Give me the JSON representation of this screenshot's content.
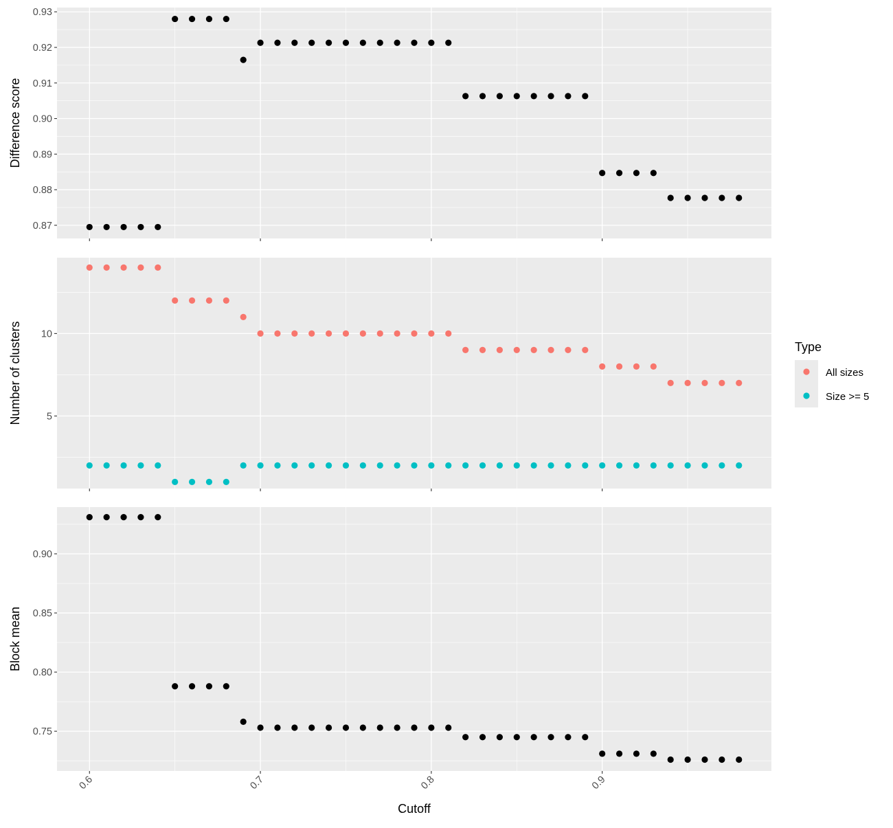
{
  "chart_data": [
    {
      "type": "scatter",
      "title": "",
      "xlabel": "",
      "ylabel": "Difference score",
      "xlim": [
        0.581,
        0.999
      ],
      "ylim": [
        0.8663,
        0.9312
      ],
      "yticks": [
        0.87,
        0.88,
        0.89,
        0.9,
        0.91,
        0.92,
        0.93
      ],
      "ytick_labels": [
        "0.87",
        "0.88",
        "0.89",
        "0.90",
        "0.91",
        "0.92",
        "0.93"
      ],
      "series": [
        {
          "color": "#000000",
          "x": [
            0.6,
            0.61,
            0.62,
            0.63,
            0.64,
            0.65,
            0.66,
            0.67,
            0.68,
            0.69,
            0.7,
            0.71,
            0.72,
            0.73,
            0.74,
            0.75,
            0.76,
            0.77,
            0.78,
            0.79,
            0.8,
            0.81,
            0.82,
            0.83,
            0.84,
            0.85,
            0.86,
            0.87,
            0.88,
            0.89,
            0.9,
            0.91,
            0.92,
            0.93,
            0.94,
            0.95,
            0.96,
            0.97,
            0.98
          ],
          "y": [
            0.8695,
            0.8695,
            0.8695,
            0.8695,
            0.8695,
            0.928,
            0.928,
            0.928,
            0.928,
            0.9165,
            0.9213,
            0.9213,
            0.9213,
            0.9213,
            0.9213,
            0.9213,
            0.9213,
            0.9213,
            0.9213,
            0.9213,
            0.9213,
            0.9213,
            0.9063,
            0.9063,
            0.9063,
            0.9063,
            0.9063,
            0.9063,
            0.9063,
            0.9063,
            0.8847,
            0.8847,
            0.8847,
            0.8847,
            0.8777,
            0.8777,
            0.8777,
            0.8777,
            0.8777
          ]
        }
      ]
    },
    {
      "type": "scatter",
      "title": "",
      "xlabel": "",
      "ylabel": "Number of clusters",
      "xlim": [
        0.581,
        0.999
      ],
      "ylim": [
        0.6,
        14.6
      ],
      "yticks": [
        5,
        10
      ],
      "ytick_labels": [
        "5",
        "10"
      ],
      "legend": {
        "title": "Type",
        "position": "right",
        "entries": [
          "All sizes",
          "Size >= 5"
        ]
      },
      "series": [
        {
          "name": "All sizes",
          "color": "#F8766D",
          "x": [
            0.6,
            0.61,
            0.62,
            0.63,
            0.64,
            0.65,
            0.66,
            0.67,
            0.68,
            0.69,
            0.7,
            0.71,
            0.72,
            0.73,
            0.74,
            0.75,
            0.76,
            0.77,
            0.78,
            0.79,
            0.8,
            0.81,
            0.82,
            0.83,
            0.84,
            0.85,
            0.86,
            0.87,
            0.88,
            0.89,
            0.9,
            0.91,
            0.92,
            0.93,
            0.94,
            0.95,
            0.96,
            0.97,
            0.98
          ],
          "y": [
            14,
            14,
            14,
            14,
            14,
            12,
            12,
            12,
            12,
            11,
            10,
            10,
            10,
            10,
            10,
            10,
            10,
            10,
            10,
            10,
            10,
            10,
            9,
            9,
            9,
            9,
            9,
            9,
            9,
            9,
            8,
            8,
            8,
            8,
            7,
            7,
            7,
            7,
            7
          ]
        },
        {
          "name": "Size >= 5",
          "color": "#00BFC4",
          "x": [
            0.6,
            0.61,
            0.62,
            0.63,
            0.64,
            0.65,
            0.66,
            0.67,
            0.68,
            0.69,
            0.7,
            0.71,
            0.72,
            0.73,
            0.74,
            0.75,
            0.76,
            0.77,
            0.78,
            0.79,
            0.8,
            0.81,
            0.82,
            0.83,
            0.84,
            0.85,
            0.86,
            0.87,
            0.88,
            0.89,
            0.9,
            0.91,
            0.92,
            0.93,
            0.94,
            0.95,
            0.96,
            0.97,
            0.98
          ],
          "y": [
            2,
            2,
            2,
            2,
            2,
            1,
            1,
            1,
            1,
            2,
            2,
            2,
            2,
            2,
            2,
            2,
            2,
            2,
            2,
            2,
            2,
            2,
            2,
            2,
            2,
            2,
            2,
            2,
            2,
            2,
            2,
            2,
            2,
            2,
            2,
            2,
            2,
            2,
            2
          ]
        }
      ]
    },
    {
      "type": "scatter",
      "title": "",
      "xlabel": "Cutoff",
      "ylabel": "Block mean",
      "xlim": [
        0.581,
        0.999
      ],
      "ylim": [
        0.7164,
        0.9395
      ],
      "xticks": [
        0.6,
        0.7,
        0.8,
        0.9
      ],
      "xtick_labels": [
        "0.6",
        "0.7",
        "0.8",
        "0.9"
      ],
      "yticks": [
        0.75,
        0.8,
        0.85,
        0.9
      ],
      "ytick_labels": [
        "0.75",
        "0.80",
        "0.85",
        "0.90"
      ],
      "series": [
        {
          "color": "#000000",
          "x": [
            0.6,
            0.61,
            0.62,
            0.63,
            0.64,
            0.65,
            0.66,
            0.67,
            0.68,
            0.69,
            0.7,
            0.71,
            0.72,
            0.73,
            0.74,
            0.75,
            0.76,
            0.77,
            0.78,
            0.79,
            0.8,
            0.81,
            0.82,
            0.83,
            0.84,
            0.85,
            0.86,
            0.87,
            0.88,
            0.89,
            0.9,
            0.91,
            0.92,
            0.93,
            0.94,
            0.95,
            0.96,
            0.97,
            0.98
          ],
          "y": [
            0.931,
            0.931,
            0.931,
            0.931,
            0.931,
            0.788,
            0.788,
            0.788,
            0.788,
            0.758,
            0.753,
            0.753,
            0.753,
            0.753,
            0.753,
            0.753,
            0.753,
            0.753,
            0.753,
            0.753,
            0.753,
            0.753,
            0.745,
            0.745,
            0.745,
            0.745,
            0.745,
            0.745,
            0.745,
            0.745,
            0.731,
            0.731,
            0.731,
            0.731,
            0.726,
            0.726,
            0.726,
            0.726,
            0.726
          ]
        }
      ]
    }
  ]
}
